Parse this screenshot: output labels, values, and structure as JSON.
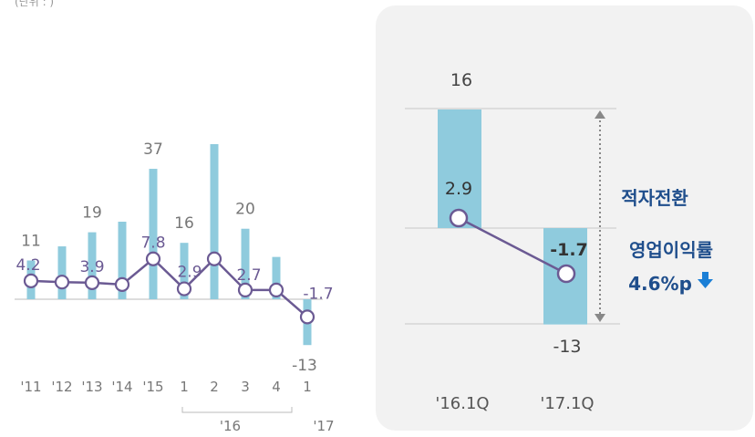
{
  "chart_data": [
    {
      "type": "bar+line",
      "panel": "left",
      "categories": [
        "'11",
        "'12",
        "'13",
        "'14",
        "'15",
        "1",
        "2",
        "3",
        "4",
        "1"
      ],
      "group_labels": [
        {
          "label": "'16",
          "from": 5,
          "to": 8
        },
        {
          "label": "'17",
          "from": 9,
          "to": 9
        }
      ],
      "bar_values": [
        11,
        15,
        19,
        22,
        37,
        16,
        44,
        20,
        12,
        -13
      ],
      "bar_labels": [
        {
          "index": 0,
          "text": "11"
        },
        {
          "index": 2,
          "text": "19"
        },
        {
          "index": 4,
          "text": "37"
        },
        {
          "index": 5,
          "text": "16"
        },
        {
          "index": 7,
          "text": "20"
        },
        {
          "index": 9,
          "text": "-13"
        }
      ],
      "line_values": [
        4.2,
        4.0,
        3.9,
        3.6,
        7.8,
        2.9,
        7.8,
        2.7,
        2.7,
        -1.7
      ],
      "line_labels": [
        {
          "index": 0,
          "text": "4.2"
        },
        {
          "index": 2,
          "text": "3.9"
        },
        {
          "index": 4,
          "text": "7.8"
        },
        {
          "index": 5,
          "text": "2.9"
        },
        {
          "index": 7,
          "text": "2.7"
        },
        {
          "index": 9,
          "text": "-1.7"
        }
      ],
      "bar_color": "#8fcbdd",
      "line_color": "#6b5a93",
      "text_color": "#777777"
    },
    {
      "type": "bar+line",
      "panel": "right",
      "categories": [
        "'16.1Q",
        "'17.1Q"
      ],
      "bar_values": [
        16,
        -13
      ],
      "bar_labels": [
        "16",
        "-13"
      ],
      "line_values": [
        2.9,
        -1.7
      ],
      "line_labels": [
        "2.9",
        "-1.7"
      ],
      "annotation": "적자전환",
      "annotation_color": "#1f4e8c",
      "margin_change_label": "영업이익률",
      "margin_change_value": "4.6%p",
      "arrow_color": "#1b7fd6",
      "bar_color": "#8fcbdd",
      "line_color": "#6b5a93",
      "panel_bg": "#f2f2f2"
    }
  ]
}
